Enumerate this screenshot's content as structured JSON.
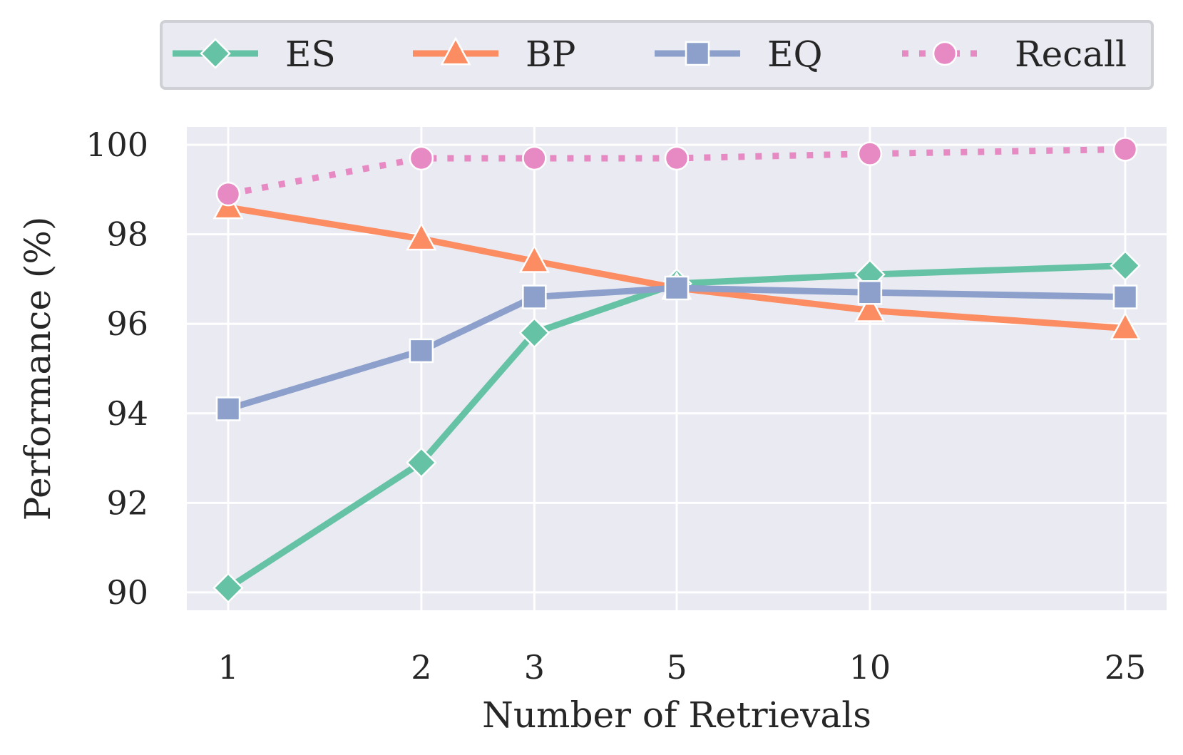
{
  "chart_data": {
    "type": "line",
    "xlabel": "Number of Retrievals",
    "ylabel": "Performance (%)",
    "x": [
      1,
      2,
      3,
      5,
      10,
      25
    ],
    "x_scale": "log",
    "y_ticks": [
      90,
      92,
      94,
      96,
      98,
      100
    ],
    "ylim": [
      89.6,
      100.4
    ],
    "grid": true,
    "legend_position": "top",
    "series": [
      {
        "name": "ES",
        "values": [
          90.1,
          92.9,
          95.8,
          96.9,
          97.1,
          97.3
        ],
        "color": "#66c2a5",
        "marker": "diamond",
        "line_style": "solid"
      },
      {
        "name": "BP",
        "values": [
          98.6,
          97.9,
          97.4,
          96.8,
          96.3,
          95.9
        ],
        "color": "#fc8d62",
        "marker": "triangle",
        "line_style": "solid"
      },
      {
        "name": "EQ",
        "values": [
          94.1,
          95.4,
          96.6,
          96.8,
          96.7,
          96.6
        ],
        "color": "#8da0cb",
        "marker": "square",
        "line_style": "solid"
      },
      {
        "name": "Recall",
        "values": [
          98.9,
          99.7,
          99.7,
          99.7,
          99.8,
          99.9
        ],
        "color": "#e78ac3",
        "marker": "circle",
        "line_style": "dotted"
      }
    ]
  }
}
